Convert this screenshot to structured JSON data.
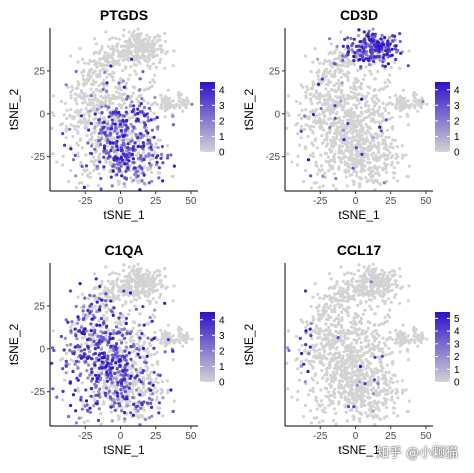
{
  "chart_data": [
    {
      "type": "scatter",
      "title": "PTGDS",
      "xlabel": "tSNE_1",
      "ylabel": "tSNE_2",
      "xlim": [
        -50,
        55
      ],
      "ylim": [
        -45,
        50
      ],
      "xticks": [
        "-25",
        "0",
        "25",
        "50"
      ],
      "yticks": [
        "25",
        "0",
        "-25"
      ],
      "legend": {
        "min": 0,
        "max": 4.5,
        "ticks": [
          "4",
          "3",
          "2",
          "1",
          "0"
        ],
        "placement": "right"
      },
      "color_low": "#d3d3d3",
      "color_high": "#2e12c8",
      "expression_region": "lower-middle",
      "max_expression": 4.5
    },
    {
      "type": "scatter",
      "title": "CD3D",
      "xlabel": "tSNE_1",
      "ylabel": "tSNE_2",
      "xlim": [
        -50,
        55
      ],
      "ylim": [
        -45,
        50
      ],
      "xticks": [
        "-25",
        "0",
        "25",
        "50"
      ],
      "yticks": [
        "25",
        "0",
        "-25"
      ],
      "legend": {
        "min": 0,
        "max": 4.5,
        "ticks": [
          "4",
          "3",
          "2",
          "1",
          "0"
        ],
        "placement": "right"
      },
      "color_low": "#d3d3d3",
      "color_high": "#2e12c8",
      "expression_region": "upper-cluster",
      "max_expression": 4.5
    },
    {
      "type": "scatter",
      "title": "C1QA",
      "xlabel": "tSNE_1",
      "ylabel": "tSNE_2",
      "xlim": [
        -50,
        55
      ],
      "ylim": [
        -45,
        50
      ],
      "xticks": [
        "-25",
        "0",
        "25",
        "50"
      ],
      "yticks": [
        "25",
        "0",
        "-25"
      ],
      "legend": {
        "min": 0,
        "max": 4.5,
        "ticks": [
          "4",
          "3",
          "2",
          "1",
          "0"
        ],
        "placement": "right"
      },
      "color_low": "#d3d3d3",
      "color_high": "#2e12c8",
      "expression_region": "left-middle",
      "max_expression": 4.5
    },
    {
      "type": "scatter",
      "title": "CCL17",
      "xlabel": "tSNE_1",
      "ylabel": "tSNE_2",
      "xlim": [
        -50,
        55
      ],
      "ylim": [
        -45,
        50
      ],
      "xticks": [
        "-25",
        "0",
        "25",
        "50"
      ],
      "yticks": [],
      "legend": {
        "min": 0,
        "max": 5.5,
        "ticks": [
          "5",
          "4",
          "3",
          "2",
          "1",
          "0"
        ],
        "placement": "right"
      },
      "color_low": "#d3d3d3",
      "color_high": "#2e12c8",
      "expression_region": "far-left-edge",
      "max_expression": 5.5
    }
  ],
  "watermark": "知乎 @小颗猫"
}
